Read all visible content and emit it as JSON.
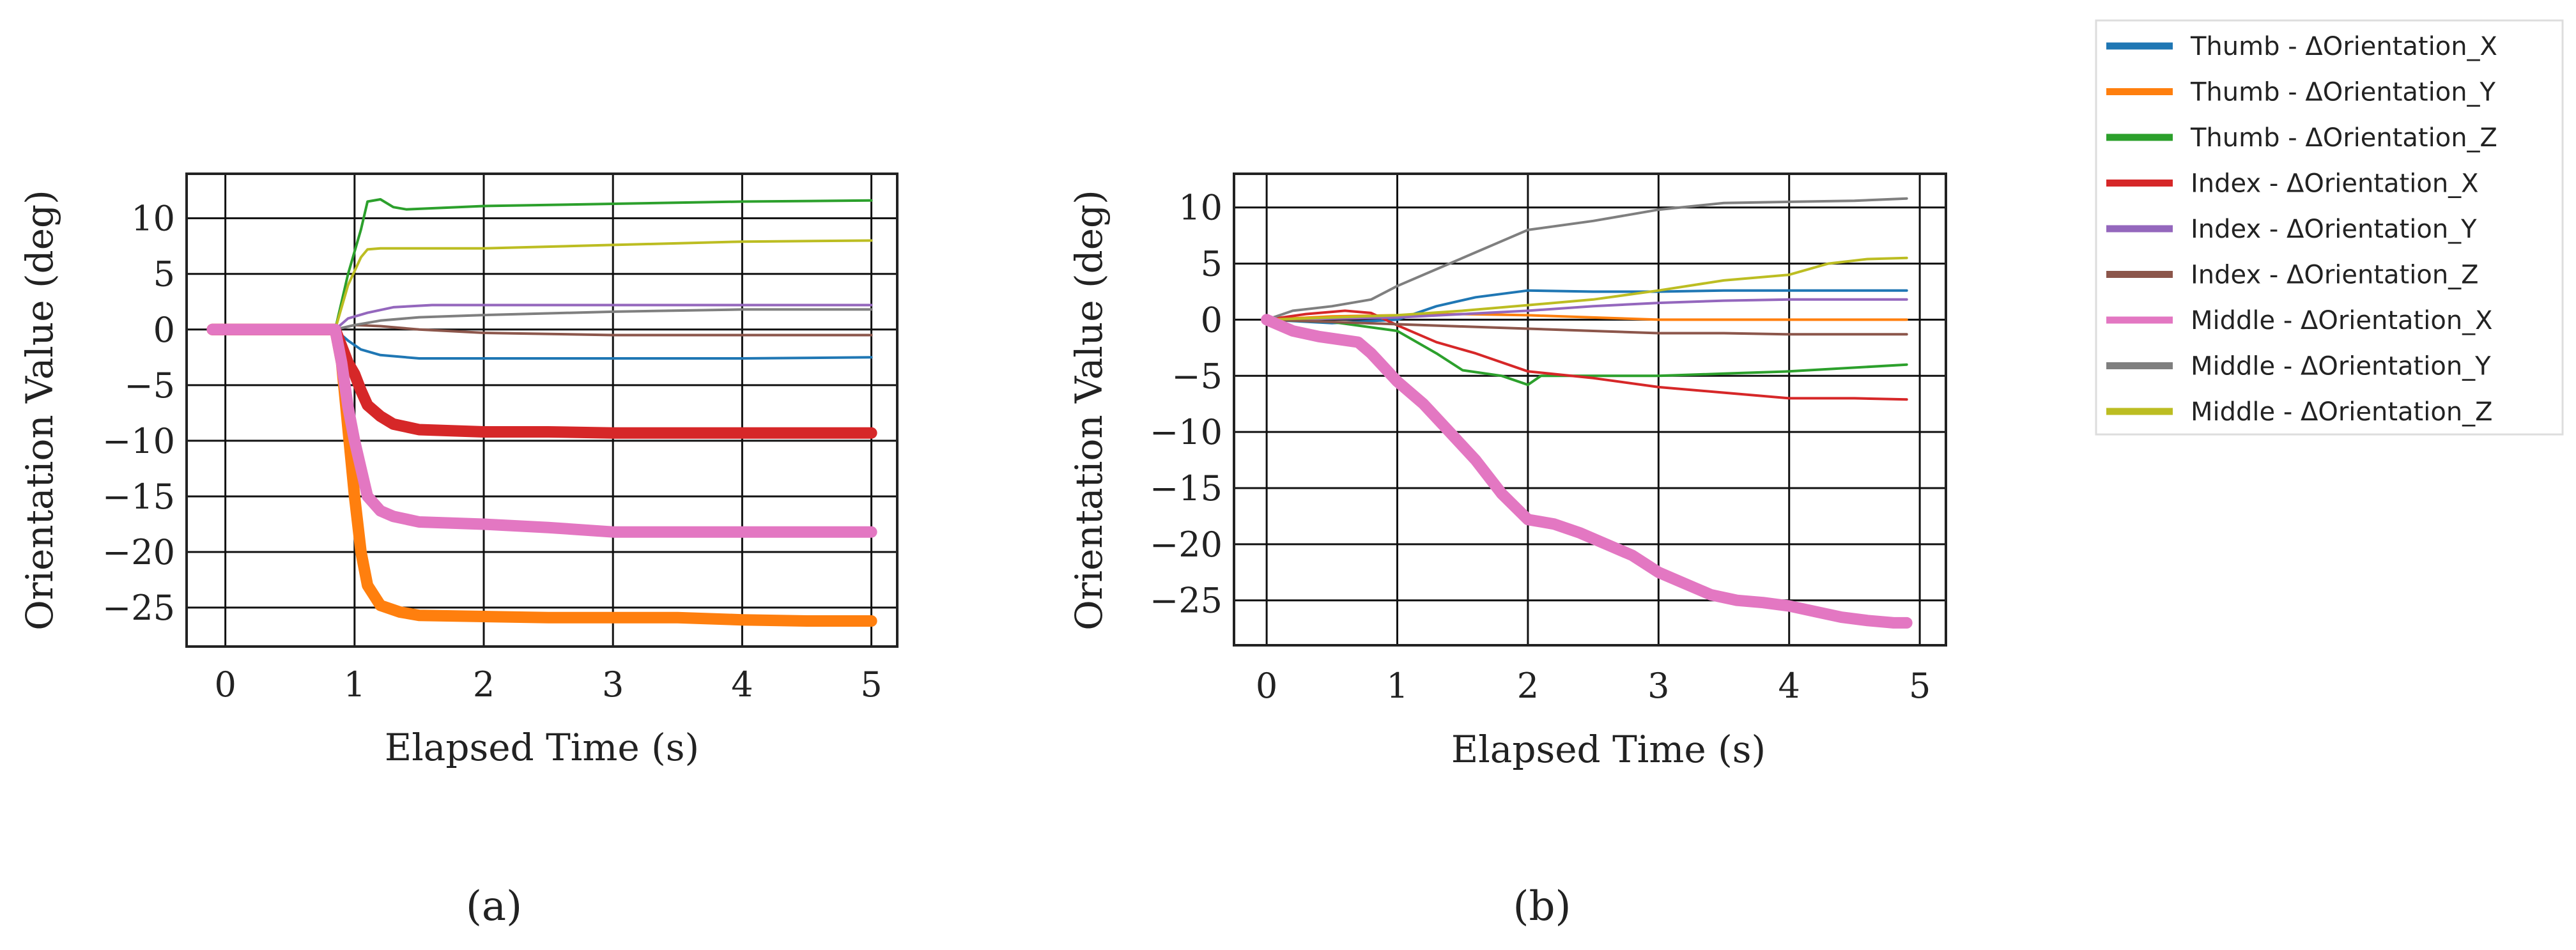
{
  "figure": {
    "panel_labels": [
      "(a)",
      "(b)"
    ]
  },
  "legend": {
    "entries": [
      {
        "label": "Thumb - ΔOrientation_X",
        "color": "#1f77b4"
      },
      {
        "label": "Thumb - ΔOrientation_Y",
        "color": "#ff7f0e"
      },
      {
        "label": "Thumb - ΔOrientation_Z",
        "color": "#2ca02c"
      },
      {
        "label": "Index - ΔOrientation_X",
        "color": "#d62728"
      },
      {
        "label": "Index - ΔOrientation_Y",
        "color": "#9467bd"
      },
      {
        "label": "Index - ΔOrientation_Z",
        "color": "#8c564b"
      },
      {
        "label": "Middle - ΔOrientation_X",
        "color": "#e377c2"
      },
      {
        "label": "Middle - ΔOrientation_Y",
        "color": "#7f7f7f"
      },
      {
        "label": "Middle - ΔOrientation_Z",
        "color": "#bcbd22"
      }
    ]
  },
  "chart_data": [
    {
      "type": "line",
      "panel": "(a)",
      "title": "",
      "xlabel": "Elapsed Time (s)",
      "ylabel": "Orientation Value (deg)",
      "xlim": [
        -0.3,
        5.2
      ],
      "ylim": [
        -28.5,
        14.0
      ],
      "xticks": [
        0,
        1,
        2,
        3,
        4,
        5
      ],
      "yticks": [
        10,
        5,
        0,
        -5,
        -10,
        -15,
        -20,
        -25
      ],
      "grid": true,
      "series": [
        {
          "name": "Thumb - ΔOrientation_X",
          "color": "#1f77b4",
          "weight": 1,
          "x": [
            -0.1,
            0.5,
            0.85,
            0.95,
            1.05,
            1.2,
            1.5,
            2.0,
            3.0,
            4.0,
            5.0
          ],
          "y": [
            0,
            0,
            0,
            -1.0,
            -1.8,
            -2.3,
            -2.6,
            -2.6,
            -2.6,
            -2.6,
            -2.5
          ]
        },
        {
          "name": "Thumb - ΔOrientation_Y",
          "color": "#ff7f0e",
          "weight": 3,
          "x": [
            -0.1,
            0.5,
            0.85,
            0.9,
            0.95,
            1.0,
            1.05,
            1.1,
            1.2,
            1.35,
            1.5,
            2.0,
            2.5,
            3.0,
            3.5,
            4.0,
            4.5,
            5.0
          ],
          "y": [
            0,
            0,
            0,
            -3,
            -9,
            -15,
            -20,
            -23,
            -24.8,
            -25.4,
            -25.7,
            -25.8,
            -25.9,
            -25.9,
            -25.9,
            -26.1,
            -26.2,
            -26.2
          ]
        },
        {
          "name": "Thumb - ΔOrientation_Z",
          "color": "#2ca02c",
          "weight": 1,
          "x": [
            -0.1,
            0.5,
            0.85,
            0.95,
            1.05,
            1.1,
            1.2,
            1.3,
            1.4,
            1.6,
            2.0,
            3.0,
            4.0,
            5.0
          ],
          "y": [
            0,
            0,
            0,
            5,
            9,
            11.5,
            11.7,
            11.0,
            10.8,
            10.9,
            11.1,
            11.3,
            11.5,
            11.6
          ]
        },
        {
          "name": "Index - ΔOrientation_X",
          "color": "#d62728",
          "weight": 3,
          "x": [
            -0.1,
            0.5,
            0.85,
            0.9,
            0.95,
            1.0,
            1.05,
            1.1,
            1.2,
            1.3,
            1.5,
            2.0,
            2.5,
            3.0,
            3.5,
            4.0,
            4.5,
            5.0
          ],
          "y": [
            0,
            0,
            0,
            -1.5,
            -3,
            -4,
            -5.5,
            -6.8,
            -7.8,
            -8.5,
            -9.0,
            -9.2,
            -9.2,
            -9.3,
            -9.3,
            -9.3,
            -9.3,
            -9.3
          ]
        },
        {
          "name": "Index - ΔOrientation_Y",
          "color": "#9467bd",
          "weight": 1,
          "x": [
            -0.1,
            0.5,
            0.85,
            0.95,
            1.1,
            1.3,
            1.6,
            2.0,
            3.0,
            4.0,
            5.0
          ],
          "y": [
            0,
            0,
            0,
            1.0,
            1.5,
            2.0,
            2.2,
            2.2,
            2.2,
            2.2,
            2.2
          ]
        },
        {
          "name": "Index - ΔOrientation_Z",
          "color": "#8c564b",
          "weight": 1,
          "x": [
            -0.1,
            0.5,
            0.85,
            1.0,
            1.2,
            1.5,
            2.0,
            3.0,
            4.0,
            5.0
          ],
          "y": [
            0,
            0,
            0,
            0.4,
            0.3,
            0,
            -0.3,
            -0.5,
            -0.5,
            -0.5
          ]
        },
        {
          "name": "Middle - ΔOrientation_X",
          "color": "#e377c2",
          "weight": 3,
          "x": [
            -0.1,
            0.5,
            0.85,
            0.9,
            0.95,
            1.0,
            1.05,
            1.1,
            1.2,
            1.3,
            1.5,
            2.0,
            2.5,
            3.0,
            3.5,
            4.0,
            4.5,
            5.0
          ],
          "y": [
            0,
            0,
            0,
            -3,
            -7,
            -10,
            -12.5,
            -15,
            -16.3,
            -16.8,
            -17.3,
            -17.5,
            -17.8,
            -18.2,
            -18.2,
            -18.2,
            -18.2,
            -18.2
          ]
        },
        {
          "name": "Middle - ΔOrientation_Y",
          "color": "#7f7f7f",
          "weight": 1,
          "x": [
            -0.1,
            0.5,
            0.85,
            1.0,
            1.2,
            1.5,
            2.0,
            3.0,
            4.0,
            5.0
          ],
          "y": [
            0,
            0,
            0,
            0.4,
            0.8,
            1.1,
            1.3,
            1.6,
            1.8,
            1.8
          ]
        },
        {
          "name": "Middle - ΔOrientation_Z",
          "color": "#bcbd22",
          "weight": 1,
          "x": [
            -0.1,
            0.5,
            0.85,
            0.95,
            1.05,
            1.1,
            1.2,
            1.5,
            2.0,
            3.0,
            4.0,
            5.0
          ],
          "y": [
            0,
            0,
            0,
            4,
            6.5,
            7.2,
            7.3,
            7.3,
            7.3,
            7.6,
            7.9,
            8.0
          ]
        }
      ]
    },
    {
      "type": "line",
      "panel": "(b)",
      "title": "",
      "xlabel": "Elapsed Time (s)",
      "ylabel": "Orientation Value (deg)",
      "xlim": [
        -0.25,
        5.2
      ],
      "ylim": [
        -29.0,
        13.0
      ],
      "xticks": [
        0,
        1,
        2,
        3,
        4,
        5
      ],
      "yticks": [
        10,
        5,
        0,
        -5,
        -10,
        -15,
        -20,
        -25
      ],
      "grid": true,
      "series": [
        {
          "name": "Thumb - ΔOrientation_X",
          "color": "#1f77b4",
          "weight": 1,
          "x": [
            0,
            0.5,
            1.0,
            1.3,
            1.6,
            2.0,
            2.5,
            3.0,
            3.5,
            4.0,
            4.9
          ],
          "y": [
            0,
            -0.3,
            0,
            1.2,
            2.0,
            2.6,
            2.5,
            2.5,
            2.6,
            2.6,
            2.6
          ]
        },
        {
          "name": "Thumb - ΔOrientation_Y",
          "color": "#ff7f0e",
          "weight": 1,
          "x": [
            0,
            0.5,
            1.0,
            1.5,
            2.0,
            2.5,
            3.0,
            3.5,
            4.0,
            4.9
          ],
          "y": [
            0,
            0.3,
            0.4,
            0.5,
            0.4,
            0.2,
            0,
            0,
            0,
            0
          ]
        },
        {
          "name": "Thumb - ΔOrientation_Z",
          "color": "#2ca02c",
          "weight": 1,
          "x": [
            0,
            0.5,
            1.0,
            1.3,
            1.5,
            1.8,
            2.0,
            2.1,
            2.5,
            3.0,
            3.5,
            4.0,
            4.9
          ],
          "y": [
            0,
            -0.2,
            -1.0,
            -3.0,
            -4.5,
            -5.0,
            -5.8,
            -5.0,
            -5.0,
            -5.0,
            -4.8,
            -4.6,
            -4.0
          ]
        },
        {
          "name": "Index - ΔOrientation_X",
          "color": "#d62728",
          "weight": 1,
          "x": [
            0,
            0.3,
            0.6,
            0.8,
            1.0,
            1.3,
            1.6,
            2.0,
            2.5,
            3.0,
            3.5,
            4.0,
            4.5,
            4.9
          ],
          "y": [
            0,
            0.5,
            0.8,
            0.6,
            -0.5,
            -2.0,
            -3.0,
            -4.6,
            -5.2,
            -6.0,
            -6.5,
            -7.0,
            -7.0,
            -7.1
          ]
        },
        {
          "name": "Index - ΔOrientation_Y",
          "color": "#9467bd",
          "weight": 1,
          "x": [
            0,
            0.5,
            1.0,
            1.5,
            2.0,
            2.5,
            3.0,
            3.5,
            4.0,
            4.9
          ],
          "y": [
            0,
            0.1,
            0.2,
            0.5,
            0.8,
            1.2,
            1.5,
            1.7,
            1.8,
            1.8
          ]
        },
        {
          "name": "Index - ΔOrientation_Z",
          "color": "#8c564b",
          "weight": 1,
          "x": [
            0,
            0.5,
            1.0,
            1.5,
            2.0,
            2.5,
            3.0,
            3.5,
            4.0,
            4.5,
            4.9
          ],
          "y": [
            0,
            -0.2,
            -0.4,
            -0.6,
            -0.8,
            -1.0,
            -1.2,
            -1.2,
            -1.3,
            -1.3,
            -1.3
          ]
        },
        {
          "name": "Middle - ΔOrientation_X",
          "color": "#e377c2",
          "weight": 3,
          "x": [
            0,
            0.2,
            0.4,
            0.7,
            0.8,
            1.0,
            1.2,
            1.4,
            1.6,
            1.8,
            2.0,
            2.2,
            2.4,
            2.6,
            2.8,
            3.0,
            3.2,
            3.4,
            3.6,
            3.8,
            4.0,
            4.2,
            4.4,
            4.6,
            4.8,
            4.9
          ],
          "y": [
            0,
            -1.0,
            -1.5,
            -2.0,
            -3.0,
            -5.5,
            -7.5,
            -10.0,
            -12.5,
            -15.5,
            -17.8,
            -18.2,
            -19.0,
            -20.0,
            -21.0,
            -22.5,
            -23.5,
            -24.5,
            -25.0,
            -25.2,
            -25.5,
            -26.0,
            -26.5,
            -26.8,
            -27.0,
            -27.0
          ]
        },
        {
          "name": "Middle - ΔOrientation_Y",
          "color": "#7f7f7f",
          "weight": 1,
          "x": [
            0,
            0.2,
            0.5,
            0.8,
            1.0,
            1.3,
            1.6,
            2.0,
            2.5,
            3.0,
            3.5,
            4.0,
            4.5,
            4.9
          ],
          "y": [
            0,
            0.8,
            1.2,
            1.8,
            3.0,
            4.5,
            6.0,
            8.0,
            8.8,
            9.8,
            10.4,
            10.5,
            10.6,
            10.8
          ]
        },
        {
          "name": "Middle - ΔOrientation_Z",
          "color": "#bcbd22",
          "weight": 1,
          "x": [
            0,
            0.5,
            1.0,
            1.5,
            2.0,
            2.5,
            3.0,
            3.5,
            4.0,
            4.3,
            4.6,
            4.9
          ],
          "y": [
            0,
            0.2,
            0.4,
            0.8,
            1.3,
            1.8,
            2.6,
            3.5,
            4.0,
            5.0,
            5.4,
            5.5
          ]
        }
      ]
    }
  ]
}
